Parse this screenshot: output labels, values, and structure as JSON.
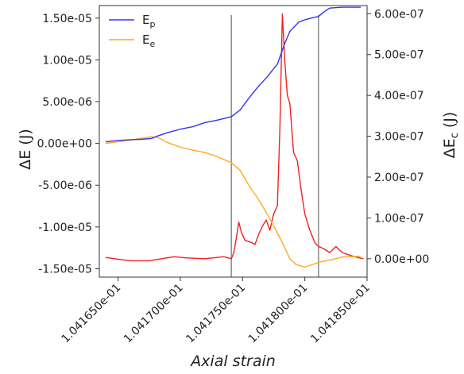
{
  "chart_data": {
    "type": "line",
    "xlabel": "Axial strain",
    "ylabel_left": "ΔE (J)",
    "ylabel_right": "ΔEc (J)",
    "x_range": [
      0.1041635,
      0.104185
    ],
    "x_ticks": [
      0.104165,
      0.10417,
      0.104175,
      0.10418,
      0.104185
    ],
    "x_tick_labels": [
      "1.041650e-01",
      "1.041700e-01",
      "1.041750e-01",
      "1.041800e-01",
      "1.041850e-01"
    ],
    "y_left_range": [
      -1.6e-05,
      1.65e-05
    ],
    "y_left_ticks": [
      1.5e-05,
      1e-05,
      5e-06,
      0.0,
      -5e-06,
      -1e-05,
      -1.5e-05
    ],
    "y_left_tick_labels": [
      "1.50e-05",
      "1.00e-05",
      "5.00e-06",
      "0.00e+00",
      "-5.00e-06",
      "-1.00e-05",
      "-1.50e-05"
    ],
    "y_right_range": [
      -4.5e-08,
      6.2e-07
    ],
    "y_right_ticks": [
      6e-07,
      5e-07,
      4e-07,
      3e-07,
      2e-07,
      1e-07,
      0.0
    ],
    "y_right_tick_labels": [
      "6.00e-07",
      "5.00e-07",
      "4.00e-07",
      "3.00e-07",
      "2.00e-07",
      "1.00e-07",
      "0.00e+00"
    ],
    "vlines": [
      0.1041741,
      0.1041811
    ],
    "legend": {
      "placement": "top-left",
      "entries": [
        {
          "label": "E",
          "sub": "p",
          "color": "#3333ee"
        },
        {
          "label": "E",
          "sub": "e",
          "color": "#ffaa22"
        }
      ]
    },
    "series": [
      {
        "name": "Ep",
        "axis": "left",
        "color": "#3333ee",
        "x": [
          0.104164,
          0.104165,
          0.104166,
          0.104167,
          0.1041677,
          0.1041682,
          0.104169,
          0.10417,
          0.104171,
          0.104172,
          0.104173,
          0.1041741,
          0.1041748,
          0.1041755,
          0.1041762,
          0.104177,
          0.1041778,
          0.1041784,
          0.1041788,
          0.1041795,
          0.10418,
          0.1041805,
          0.1041811,
          0.1041815,
          0.104182,
          0.104183,
          0.1041845
        ],
        "y": [
          2e-07,
          3.5e-07,
          4.5e-07,
          5e-07,
          6e-07,
          9e-07,
          1.3e-06,
          1.7e-06,
          2e-06,
          2.5e-06,
          2.8e-06,
          3.2e-06,
          4e-06,
          5.4e-06,
          6.7e-06,
          8e-06,
          9.5e-06,
          1.2e-05,
          1.34e-05,
          1.45e-05,
          1.48e-05,
          1.5e-05,
          1.52e-05,
          1.57e-05,
          1.62e-05,
          1.63e-05,
          1.63e-05
        ]
      },
      {
        "name": "Ee",
        "axis": "left",
        "color": "#ffaa22",
        "x": [
          0.104164,
          0.104165,
          0.104166,
          0.104167,
          0.1041677,
          0.1041682,
          0.104169,
          0.10417,
          0.104171,
          0.104172,
          0.104173,
          0.1041741,
          0.1041748,
          0.1041755,
          0.1041762,
          0.104177,
          0.1041778,
          0.1041784,
          0.1041788,
          0.1041793,
          0.10418,
          0.1041808,
          0.1041815,
          0.1041822,
          0.104183,
          0.1041845
        ],
        "y": [
          0.0,
          2e-07,
          4e-07,
          6.5e-07,
          8e-07,
          7e-07,
          1e-07,
          -4.5e-07,
          -8e-07,
          -1.1e-06,
          -1.6e-06,
          -2.3e-06,
          -3.2e-06,
          -5e-06,
          -6.5e-06,
          -8.5e-06,
          -1.07e-05,
          -1.25e-05,
          -1.38e-05,
          -1.45e-05,
          -1.48e-05,
          -1.44e-05,
          -1.41e-05,
          -1.39e-05,
          -1.36e-05,
          -1.35e-05
        ]
      },
      {
        "name": "ΔEc",
        "axis": "right",
        "color": "#ee2222",
        "x": [
          0.104164,
          0.104166,
          0.1041675,
          0.1041685,
          0.1041695,
          0.1041705,
          0.104172,
          0.1041735,
          0.1041741,
          0.1041743,
          0.1041745,
          0.1041747,
          0.1041749,
          0.1041752,
          0.1041757,
          0.104176,
          0.1041763,
          0.1041766,
          0.1041769,
          0.1041772,
          0.1041775,
          0.1041778,
          0.104178,
          0.1041782,
          0.1041783,
          0.1041784,
          0.1041786,
          0.1041788,
          0.1041791,
          0.1041794,
          0.1041797,
          0.10418,
          0.1041804,
          0.1041808,
          0.1041811,
          0.1041815,
          0.104182,
          0.1041825,
          0.104183,
          0.104184,
          0.1041847
        ],
        "y": [
          3e-09,
          -5e-09,
          -5e-09,
          0.0,
          5e-09,
          2e-09,
          0.0,
          5e-09,
          0.0,
          1.5e-08,
          5e-08,
          9e-08,
          6.5e-08,
          4.5e-08,
          4e-08,
          3.5e-08,
          6e-08,
          8e-08,
          9.5e-08,
          7e-08,
          1.1e-07,
          1.3e-07,
          3.2e-07,
          6e-07,
          5.4e-07,
          4.8e-07,
          4e-07,
          3.8e-07,
          2.6e-07,
          2.4e-07,
          1.7e-07,
          1.1e-07,
          7e-08,
          4e-08,
          3e-08,
          2.5e-08,
          1.5e-08,
          3e-08,
          1.5e-08,
          5e-09,
          0.0
        ]
      }
    ]
  }
}
